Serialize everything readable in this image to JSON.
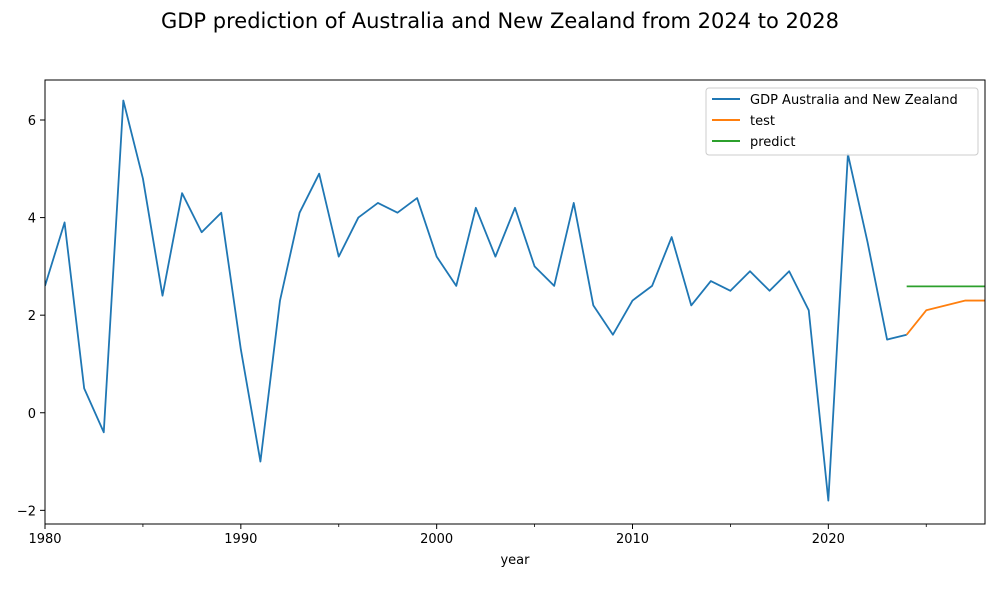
{
  "chart_data": {
    "type": "line",
    "title": "GDP prediction of Australia and New Zealand from 2024 to 2028",
    "xlabel": "year",
    "ylabel": "",
    "xlim": [
      1980,
      2028
    ],
    "ylim": [
      -2.28,
      6.82
    ],
    "x_ticks": [
      {
        "value": 1980,
        "label": "1980"
      },
      {
        "value": 1990,
        "label": "1990"
      },
      {
        "value": 2000,
        "label": "2000"
      },
      {
        "value": 2010,
        "label": "2010"
      },
      {
        "value": 2020,
        "label": "2020"
      }
    ],
    "x_minor_ticks": [
      1985,
      1995,
      2005,
      2015,
      2025
    ],
    "y_ticks": [
      {
        "value": -2,
        "label": "−2"
      },
      {
        "value": 0,
        "label": "0"
      },
      {
        "value": 2,
        "label": "2"
      },
      {
        "value": 4,
        "label": "4"
      },
      {
        "value": 6,
        "label": "6"
      }
    ],
    "grid": false,
    "legend_position": "top-right",
    "series": [
      {
        "name": "GDP Australia and New Zealand",
        "color": "#1f77b4",
        "x": [
          1980,
          1981,
          1982,
          1983,
          1984,
          1985,
          1986,
          1987,
          1988,
          1989,
          1990,
          1991,
          1992,
          1993,
          1994,
          1995,
          1996,
          1997,
          1998,
          1999,
          2000,
          2001,
          2002,
          2003,
          2004,
          2005,
          2006,
          2007,
          2008,
          2009,
          2010,
          2011,
          2012,
          2013,
          2014,
          2015,
          2016,
          2017,
          2018,
          2019,
          2020,
          2021,
          2022,
          2023,
          2024
        ],
        "values": [
          2.6,
          3.9,
          0.5,
          -0.4,
          6.4,
          4.8,
          2.4,
          4.5,
          3.7,
          4.1,
          1.3,
          -1.0,
          2.3,
          4.1,
          4.9,
          3.2,
          4.0,
          4.3,
          4.1,
          4.4,
          3.2,
          2.6,
          4.2,
          3.2,
          4.2,
          3.0,
          2.6,
          4.3,
          2.2,
          1.6,
          2.3,
          2.6,
          3.6,
          2.2,
          2.7,
          2.5,
          2.9,
          2.5,
          2.9,
          2.1,
          -1.8,
          5.3,
          3.5,
          1.5,
          1.6
        ]
      },
      {
        "name": "test",
        "color": "#ff7f0e",
        "x": [
          2024,
          2025,
          2026,
          2027,
          2028
        ],
        "values": [
          1.6,
          2.1,
          2.2,
          2.3,
          2.3
        ]
      },
      {
        "name": "predict",
        "color": "#2ca02c",
        "x": [
          2024,
          2025,
          2026,
          2027,
          2028
        ],
        "values": [
          2.59,
          2.59,
          2.59,
          2.59,
          2.59
        ]
      }
    ]
  }
}
